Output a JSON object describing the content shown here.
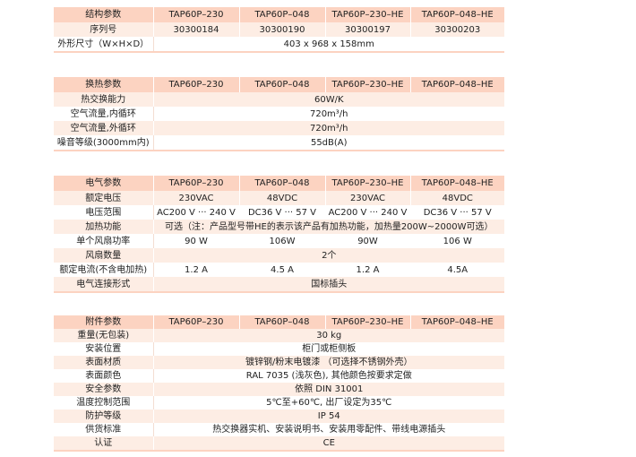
{
  "sections": [
    {
      "header": [
        "结构参数",
        "TAP60P–230",
        "TAP60P–048",
        "TAP60P–230–HE",
        "TAP60P–048–HE"
      ],
      "rows": [
        {
          "label": "序列号",
          "values": [
            "30300184",
            "30300190",
            "30300197",
            "30300203"
          ]
        },
        {
          "label": "外形尺寸（W×H×D）",
          "values": [
            "403 x 968 x 158mm"
          ]
        }
      ]
    },
    {
      "header": [
        "换热参数",
        "TAP60P–230",
        "TAP60P–048",
        "TAP60P–230–HE",
        "TAP60P–048–HE"
      ],
      "rows": [
        {
          "label": "热交换能力",
          "values": [
            "60W/K"
          ]
        },
        {
          "label": "空气流量,内循环",
          "values": [
            "720m³/h"
          ]
        },
        {
          "label": "空气流量,外循环",
          "values": [
            "720m³/h"
          ]
        },
        {
          "label": "噪音等级(3000mm内)",
          "values": [
            "55dB(A)"
          ]
        }
      ]
    },
    {
      "header": [
        "电气参数",
        "TAP60P–230",
        "TAP60P–048",
        "TAP60P–230–HE",
        "TAP60P–048–HE"
      ],
      "rows": [
        {
          "label": "额定电压",
          "values": [
            "230VAC",
            "48VDC",
            "230VAC",
            "48VDC"
          ]
        },
        {
          "label": "电压范围",
          "values": [
            "AC200 V ··· 240 V",
            "DC36 V ··· 57 V",
            "AC200 V ··· 240 V",
            "DC36 V ··· 57 V"
          ]
        },
        {
          "label": "加热功能",
          "values": [
            "可选（注：产品型号带HE的表示该产品有加热功能，加热量200W~2000W可选）"
          ]
        },
        {
          "label": "单个风扇功率",
          "values": [
            "90 W",
            "106W",
            "90W",
            "106 W"
          ]
        },
        {
          "label": "风扇数量",
          "values": [
            "2个"
          ]
        },
        {
          "label": "额定电流(不含电加热)",
          "values": [
            "1.2 A",
            "4.5 A",
            "1.2 A",
            "4.5A"
          ]
        },
        {
          "label": "电气连接形式",
          "values": [
            "国标插头"
          ]
        }
      ]
    },
    {
      "header": [
        "附件参数",
        "TAP60P–230",
        "TAP60P–048",
        "TAP60P–230–HE",
        "TAP60P–048–HE"
      ],
      "rows": [
        {
          "label": "重量(无包装)",
          "values": [
            "30 kg"
          ]
        },
        {
          "label": "安装位置",
          "values": [
            "柜门或柜侧板"
          ]
        },
        {
          "label": "表面材质",
          "values": [
            "镀锌钢/粉末电镀漆 （可选择不锈钢外壳）"
          ]
        },
        {
          "label": "表面颜色",
          "values": [
            "RAL 7035 (浅灰色), 其他颜色按要求定做"
          ]
        },
        {
          "label": "安全参数",
          "values": [
            "依照 DIN 31001"
          ]
        },
        {
          "label": "温度控制范围",
          "values": [
            "5℃至+60℃, 出厂设定为35℃"
          ]
        },
        {
          "label": "防护等级",
          "values": [
            "IP 54"
          ]
        },
        {
          "label": "供货标准",
          "values": [
            "热交换器实机、安装说明书、安装用零配件、带线电源插头"
          ]
        },
        {
          "label": "认证",
          "values": [
            "CE"
          ]
        }
      ]
    }
  ]
}
